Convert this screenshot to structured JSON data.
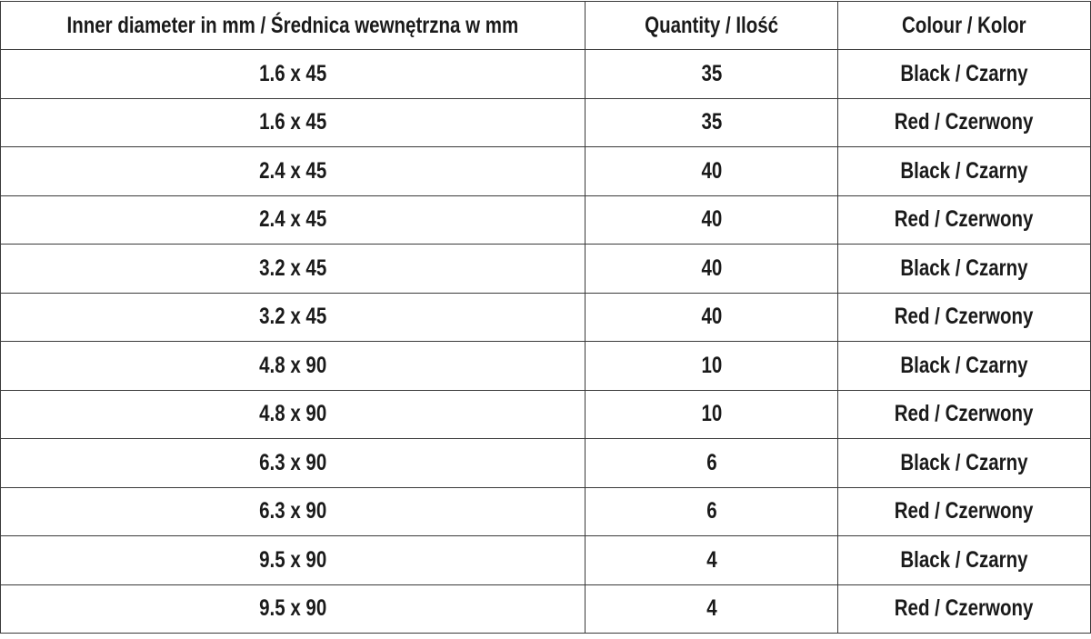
{
  "table": {
    "headers": [
      "Inner diameter in mm / Średnica wewnętrzna w mm",
      "Quantity / Ilość",
      "Colour / Kolor"
    ],
    "rows": [
      [
        "1.6 x 45",
        "35",
        "Black / Czarny"
      ],
      [
        "1.6 x 45",
        "35",
        "Red / Czerwony"
      ],
      [
        "2.4 x 45",
        "40",
        "Black / Czarny"
      ],
      [
        "2.4 x 45",
        "40",
        "Red / Czerwony"
      ],
      [
        "3.2 x 45",
        "40",
        "Black / Czarny"
      ],
      [
        "3.2 x 45",
        "40",
        "Red / Czerwony"
      ],
      [
        "4.8 x 90",
        "10",
        "Black / Czarny"
      ],
      [
        "4.8 x 90",
        "10",
        "Red / Czerwony"
      ],
      [
        "6.3 x 90",
        "6",
        "Black / Czarny"
      ],
      [
        "6.3 x 90",
        "6",
        "Red / Czerwony"
      ],
      [
        "9.5 x 90",
        "4",
        "Black / Czarny"
      ],
      [
        "9.5 x 90",
        "4",
        "Red / Czerwony"
      ]
    ]
  }
}
